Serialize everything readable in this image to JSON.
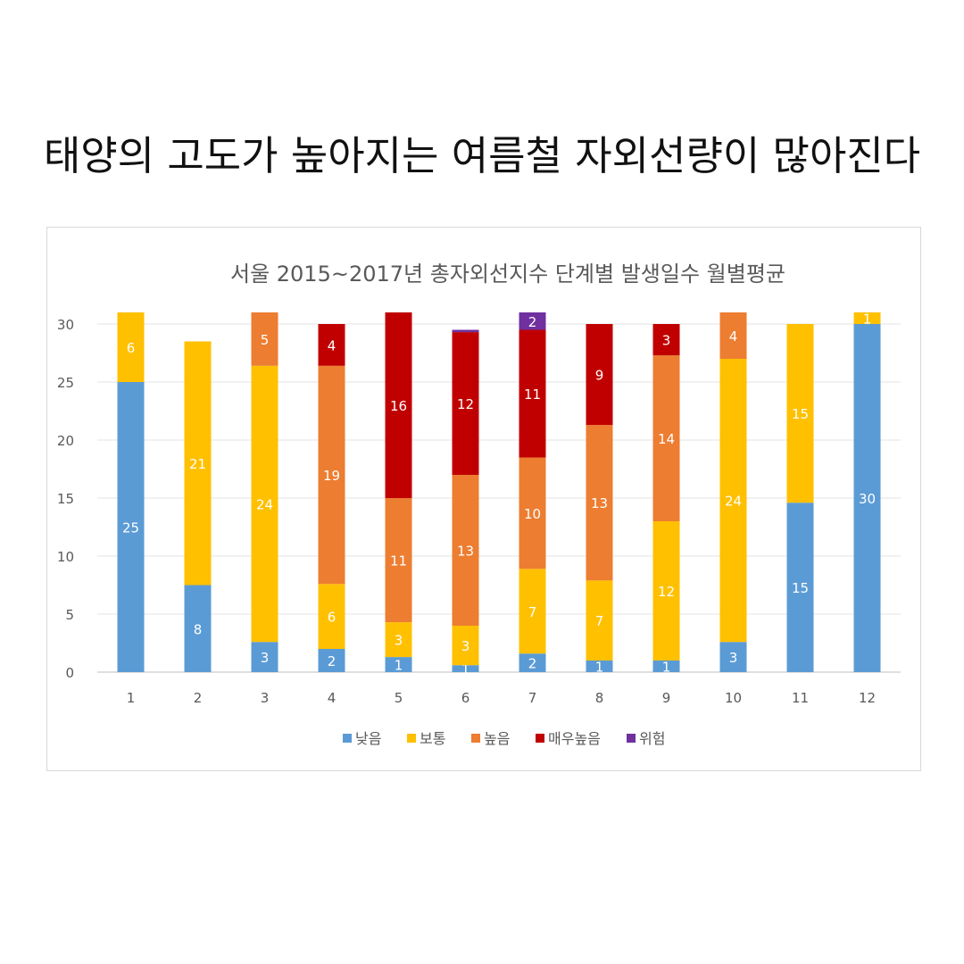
{
  "headline": "태양의 고도가 높아지는 여름철 자외선량이 많아진다",
  "chart_data": {
    "type": "bar",
    "stacked": true,
    "title": "서울 2015~2017년 총자외선지수 단계별 발생일수 월별평균",
    "xlabel": "",
    "ylabel": "",
    "ylim": [
      0,
      30
    ],
    "yticks": [
      0,
      5,
      10,
      15,
      20,
      25,
      30
    ],
    "grid": true,
    "legend_position": "bottom",
    "categories": [
      "1",
      "2",
      "3",
      "4",
      "5",
      "6",
      "7",
      "8",
      "9",
      "10",
      "11",
      "12"
    ],
    "series": [
      {
        "name": "낮음",
        "color": "#5b9bd5",
        "values": [
          25,
          7.5,
          2.6,
          2,
          1.3,
          0.6,
          1.6,
          1,
          1,
          2.6,
          14.6,
          30
        ],
        "labels": [
          "25",
          "8",
          "3",
          "2",
          "1",
          "1",
          "2",
          "1",
          "1",
          "3",
          "15",
          "30"
        ]
      },
      {
        "name": "보통",
        "color": "#ffc000",
        "values": [
          6,
          21,
          23.8,
          5.6,
          3,
          3.4,
          7.3,
          6.9,
          12,
          24.4,
          15.4,
          1
        ],
        "labels": [
          "6",
          "21",
          "24",
          "6",
          "3",
          "3",
          "7",
          "7",
          "12",
          "24",
          "15",
          "1"
        ]
      },
      {
        "name": "높음",
        "color": "#ed7d31",
        "values": [
          0,
          0,
          4.6,
          18.8,
          10.7,
          13,
          9.6,
          13.4,
          14.3,
          4,
          0,
          0
        ],
        "labels": [
          "",
          "",
          "5",
          "19",
          "11",
          "13",
          "10",
          "13",
          "14",
          "4",
          "",
          ""
        ]
      },
      {
        "name": "매우높음",
        "color": "#c00000",
        "values": [
          0,
          0,
          0,
          3.6,
          16,
          12.3,
          11,
          8.7,
          2.7,
          0,
          0,
          0
        ],
        "labels": [
          "",
          "",
          "",
          "4",
          "16",
          "12",
          "11",
          "9",
          "3",
          "",
          "",
          ""
        ]
      },
      {
        "name": "위험",
        "color": "#7030a0",
        "values": [
          0,
          0,
          0,
          0,
          0,
          0.2,
          1.5,
          0,
          0,
          0,
          0,
          0
        ],
        "labels": [
          "",
          "",
          "",
          "",
          "",
          "",
          "2",
          "",
          "",
          "",
          "",
          ""
        ]
      }
    ]
  }
}
